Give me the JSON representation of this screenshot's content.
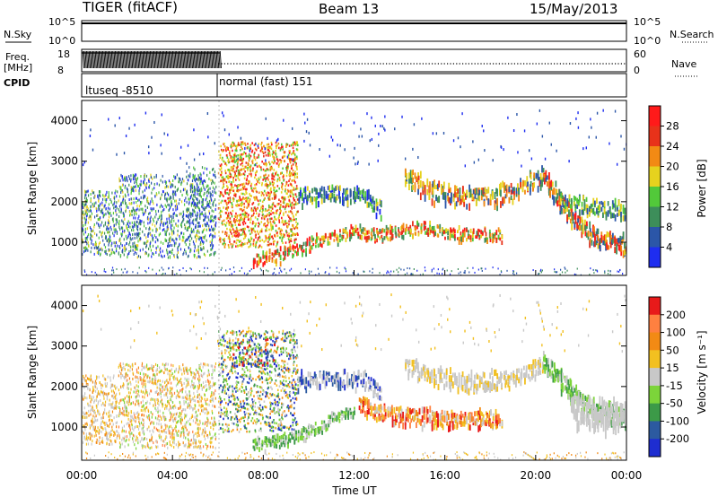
{
  "header": {
    "title": "TIGER (fitACF)",
    "beam": "Beam 13",
    "date": "15/May/2013"
  },
  "chart_data": [
    {
      "type": "line",
      "panel": "noise",
      "left_labels": [
        "N.Sky"
      ],
      "right_labels": [
        "N.Search"
      ],
      "yticks_left": [
        "10^5",
        "10^0"
      ],
      "yticks_right": [
        "10^5",
        "10^0"
      ]
    },
    {
      "type": "line",
      "panel": "frequency",
      "left_labels": [
        "Freq.",
        "[MHz]"
      ],
      "right_labels": [
        "Nave"
      ],
      "yticks_left": [
        "18",
        "8"
      ],
      "yticks_right": [
        "60",
        "0"
      ]
    },
    {
      "type": "table",
      "panel": "cpid",
      "label": "CPID",
      "segments": [
        {
          "name": "ltuseq -8510",
          "start_hour": 0,
          "end_hour": 6
        },
        {
          "name": "normal (fast) 151",
          "start_hour": 6,
          "end_hour": 24
        }
      ]
    },
    {
      "type": "heatmap",
      "panel": "power",
      "ylabel": "Slant Range [km]",
      "yticks": [
        1000,
        2000,
        3000,
        4000
      ],
      "ylim": [
        180,
        4500
      ],
      "colorbar": {
        "label": "Power [dB]",
        "ticks": [
          "4",
          "8",
          "12",
          "16",
          "20",
          "24",
          "28"
        ],
        "colors": [
          "#1e2df0",
          "#2b56a8",
          "#3d8e5a",
          "#52c93a",
          "#e6d21e",
          "#f28a14",
          "#e8321a",
          "#ff1a1a"
        ]
      }
    },
    {
      "type": "heatmap",
      "panel": "velocity",
      "ylabel": "Slant Range [km]",
      "yticks": [
        1000,
        2000,
        3000,
        4000
      ],
      "ylim": [
        180,
        4500
      ],
      "colorbar": {
        "label": "Velocity [m s⁻¹]",
        "ticks": [
          "200",
          "100",
          "50",
          "15",
          "-15",
          "-50",
          "-100",
          "-200"
        ],
        "colors": [
          "#1e2dd0",
          "#2c5aa0",
          "#3c9a48",
          "#7cd43a",
          "#c8c8c8",
          "#f2c020",
          "#f28a14",
          "#ff8040",
          "#e81a1a"
        ]
      }
    }
  ],
  "xaxis": {
    "label": "Time UT",
    "ticks": [
      "00:00",
      "04:00",
      "08:00",
      "12:00",
      "16:00",
      "20:00",
      "00:00"
    ],
    "tick_hours": [
      0,
      4,
      8,
      12,
      16,
      20,
      24
    ]
  }
}
